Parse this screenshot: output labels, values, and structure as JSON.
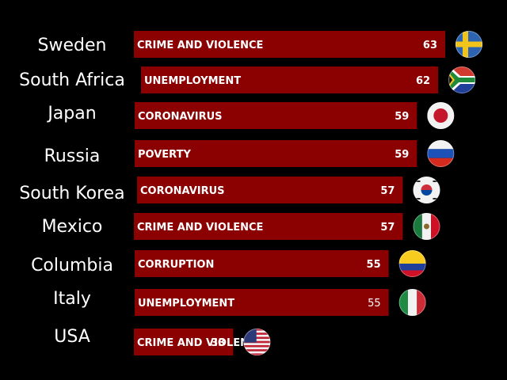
{
  "chart_data": {
    "type": "bar",
    "orientation": "horizontal",
    "title": "",
    "xlabel": "",
    "ylabel": "",
    "xlim": [
      0,
      70
    ],
    "grid": false,
    "legend": "none",
    "categories": [
      "Sweden",
      "South Africa",
      "Japan",
      "Russia",
      "South Korea",
      "Mexico",
      "Columbia",
      "Italy",
      "USA"
    ],
    "issues": [
      "CRIME AND VIOLENCE",
      "UNEMPLOYMENT",
      "CORONAVIRUS",
      "POVERTY",
      "CORONAVIRUS",
      "CRIME AND VIOLENCE",
      "CORRUPTION",
      "UNEMPLOYMENT",
      "CRIME AND VIOLENCE"
    ],
    "values": [
      63,
      62,
      59,
      59,
      57,
      57,
      55,
      55,
      33
    ],
    "flags": [
      "sweden-flag-icon",
      "south-africa-flag-icon",
      "japan-flag-icon",
      "russia-flag-icon",
      "south-korea-flag-icon",
      "mexico-flag-icon",
      "colombia-flag-icon",
      "italy-flag-icon",
      "usa-flag-icon"
    ]
  },
  "colors": {
    "background": "#000000",
    "bar": "#8b0000",
    "text": "#ffffff"
  }
}
